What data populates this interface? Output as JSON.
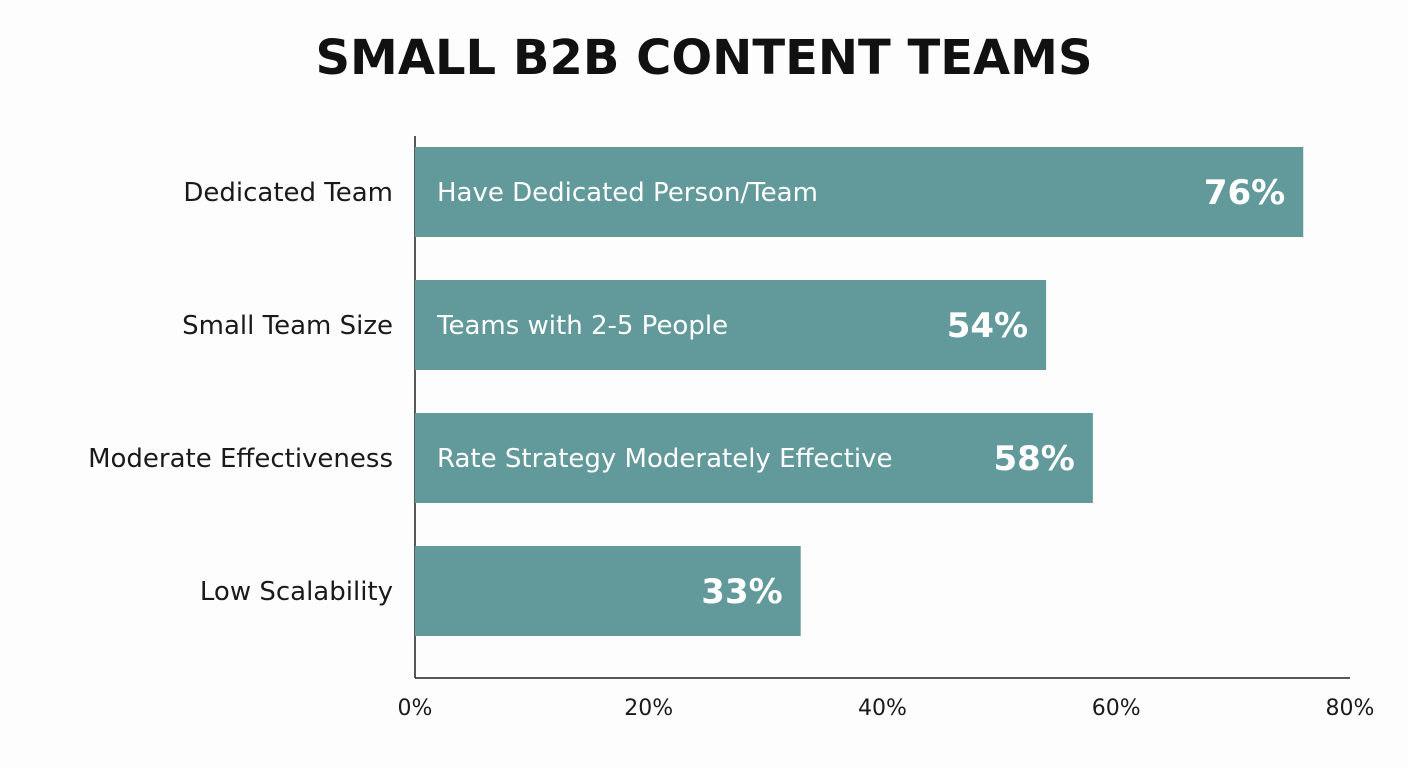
{
  "chart_data": {
    "type": "bar",
    "orientation": "horizontal",
    "title": "SMALL B2B CONTENT TEAMS",
    "categories": [
      "Dedicated Team",
      "Small Team Size",
      "Moderate Effectiveness",
      "Low Scalability"
    ],
    "bar_labels": [
      "Have Dedicated Person/Team",
      "Teams with 2-5 People",
      "Rate Strategy Moderately Effective",
      ""
    ],
    "values": [
      76,
      54,
      58,
      33
    ],
    "value_labels": [
      "76%",
      "54%",
      "58%",
      "33%"
    ],
    "x_ticks": [
      "0%",
      "20%",
      "40%",
      "60%",
      "80%"
    ],
    "xlim": [
      0,
      80
    ],
    "xlabel": "",
    "ylabel": "",
    "grid": false,
    "legend": "none",
    "bar_color": "#62999a"
  }
}
